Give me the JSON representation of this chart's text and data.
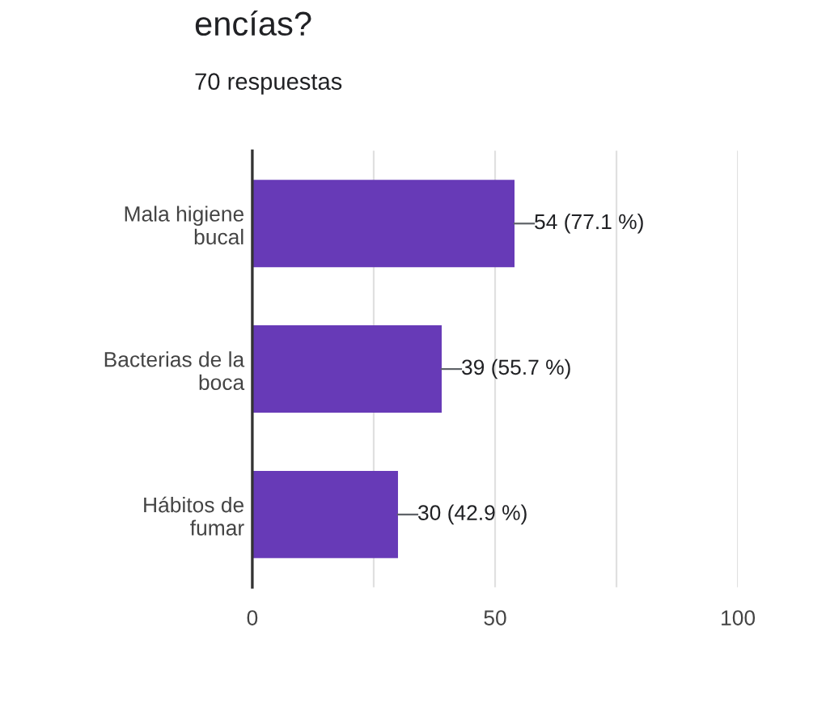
{
  "chart_data": {
    "type": "bar",
    "orientation": "horizontal",
    "title": "encías?",
    "subtitle": "70 respuestas",
    "categories": [
      "Mala higiene\nbucal",
      "Bacterias de la\nboca",
      "Hábitos de\nfumar"
    ],
    "values": [
      54,
      39,
      30
    ],
    "value_labels": [
      "54 (77.1 %)",
      "39 (55.7 %)",
      "30 (42.9 %)"
    ],
    "color": "#673ab7",
    "xlim": [
      0,
      100
    ],
    "xticks": [
      0,
      {
        "value": 25,
        "label": null
      },
      50,
      {
        "value": 75,
        "label": null
      },
      100
    ],
    "grid": "x"
  }
}
